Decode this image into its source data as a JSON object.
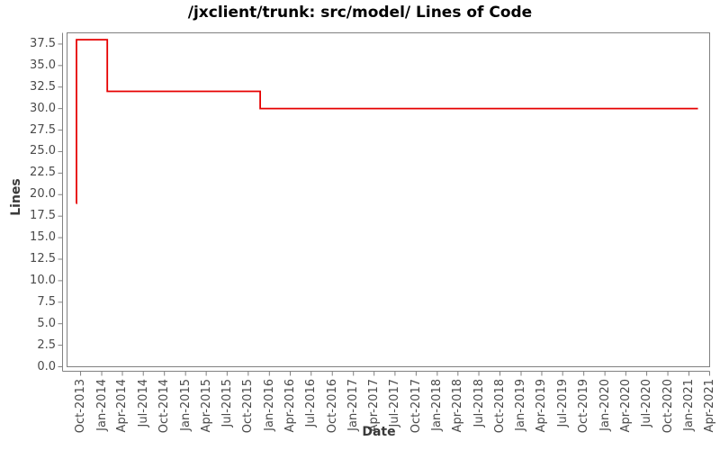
{
  "page": {
    "background": "#ffffff"
  },
  "chart_data": {
    "type": "line",
    "step": true,
    "title": "/jxclient/trunk: src/model/ Lines of Code",
    "xlabel": "Date",
    "ylabel": "Lines",
    "grid": false,
    "legend": "none",
    "x_range": [
      "2013-08-03",
      "2021-04-01"
    ],
    "y_range": [
      0,
      38.8
    ],
    "x_ticks": [
      "Oct-2013",
      "Jan-2014",
      "Apr-2014",
      "Jul-2014",
      "Oct-2014",
      "Jan-2015",
      "Apr-2015",
      "Jul-2015",
      "Oct-2015",
      "Jan-2016",
      "Apr-2016",
      "Jul-2016",
      "Oct-2016",
      "Jan-2017",
      "Apr-2017",
      "Jul-2017",
      "Oct-2017",
      "Jan-2018",
      "Apr-2018",
      "Jul-2018",
      "Oct-2018",
      "Jan-2019",
      "Apr-2019",
      "Jul-2019",
      "Oct-2019",
      "Jan-2020",
      "Apr-2020",
      "Jul-2020",
      "Oct-2020",
      "Jan-2021",
      "Apr-2021"
    ],
    "y_ticks": [
      "0.0",
      "2.5",
      "5.0",
      "7.5",
      "10.0",
      "12.5",
      "15.0",
      "17.5",
      "20.0",
      "22.5",
      "25.0",
      "27.5",
      "30.0",
      "32.5",
      "35.0",
      "37.5"
    ],
    "series": [
      {
        "name": "Lines of Code",
        "color": "#e60000",
        "interpolation": "step-after",
        "points": [
          {
            "date": "2013-09-11",
            "value": 19
          },
          {
            "date": "2013-09-13",
            "value": 38
          },
          {
            "date": "2014-01-25",
            "value": 32
          },
          {
            "date": "2015-11-22",
            "value": 30
          },
          {
            "date": "2021-02-09",
            "value": 30
          }
        ]
      }
    ],
    "colors": {
      "axis": "#808080",
      "tick_label": "#4a4a4a",
      "axis_label": "#3a3a3a",
      "title": "#000000"
    }
  }
}
